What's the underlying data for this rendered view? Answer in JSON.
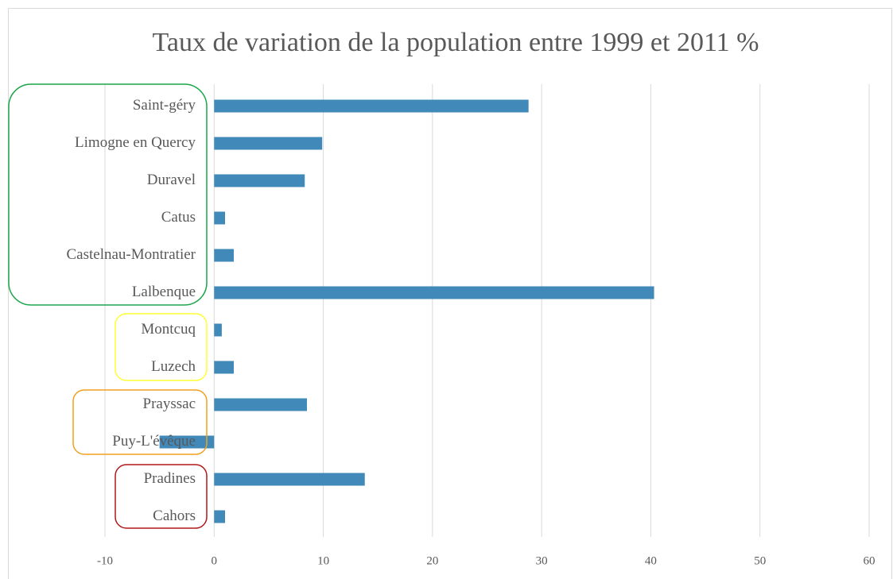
{
  "chart_data": {
    "type": "barh",
    "title": "Taux de variation de la population entre 1999 et 2011 %",
    "categories": [
      "Saint-géry",
      "Limogne en Quercy",
      "Duravel",
      "Catus",
      "Castelnau-Montratier",
      "Lalbenque",
      "Montcuq",
      "Luzech",
      "Prayssac",
      "Puy-L'évêque",
      "Pradines",
      "Cahors"
    ],
    "values": [
      28.8,
      9.9,
      8.3,
      1.0,
      1.8,
      40.3,
      0.7,
      1.8,
      8.5,
      -5.0,
      13.8,
      1.0
    ],
    "color": "#4189b9",
    "xlim": [
      -10,
      60
    ],
    "xticks": [
      -10,
      0,
      10,
      20,
      30,
      40,
      50,
      60
    ],
    "grid": true
  }
}
